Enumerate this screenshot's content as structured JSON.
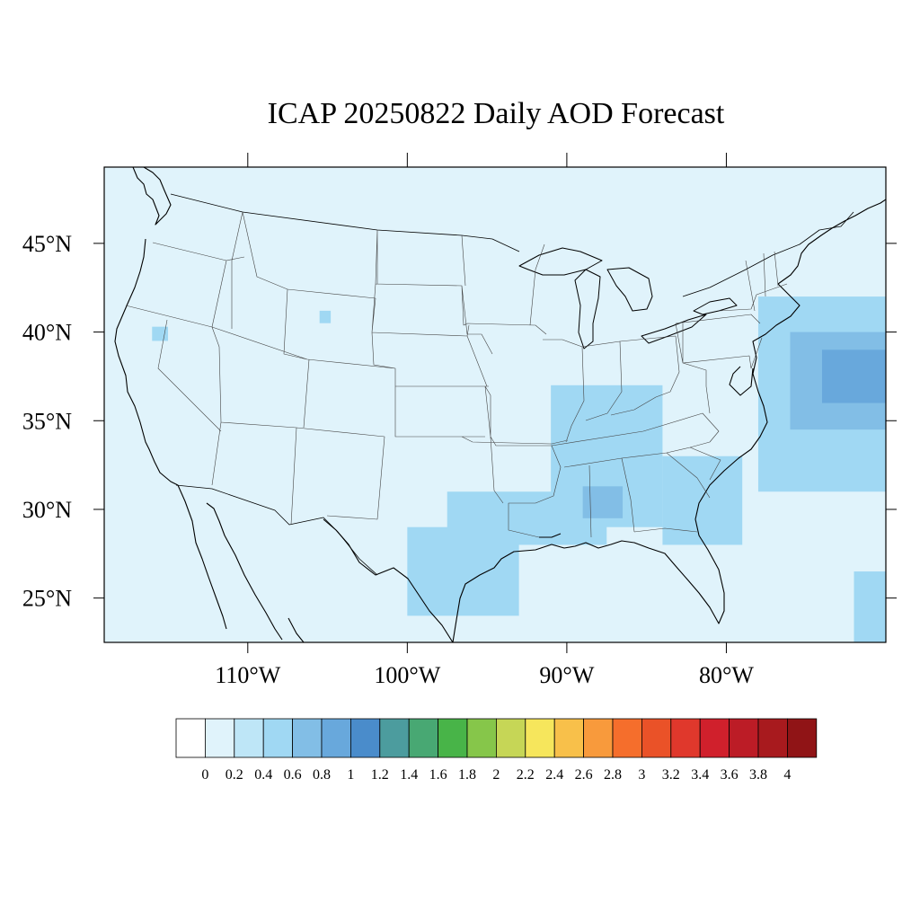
{
  "title": "ICAP 20250822 Daily AOD Forecast",
  "map": {
    "region": "Contiguous United States",
    "projection": "cylindrical equidistant",
    "lon_range": [
      -119,
      -70
    ],
    "lat_range": [
      22.5,
      49.3
    ],
    "lat_ticks": [
      {
        "value": 45,
        "label": "45°N"
      },
      {
        "value": 40,
        "label": "40°N"
      },
      {
        "value": 35,
        "label": "35°N"
      },
      {
        "value": 30,
        "label": "30°N"
      },
      {
        "value": 25,
        "label": "25°N"
      }
    ],
    "lon_ticks": [
      {
        "value": -110,
        "label": "110°W"
      },
      {
        "value": -100,
        "label": "100°W"
      },
      {
        "value": -90,
        "label": "90°W"
      },
      {
        "value": -80,
        "label": "80°W"
      }
    ],
    "background_color": "#e0f3fb",
    "boundary_color": "#000000"
  },
  "colorbar": {
    "labels": [
      "0",
      "0.2",
      "0.4",
      "0.6",
      "0.8",
      "1",
      "1.2",
      "1.4",
      "1.6",
      "1.8",
      "2",
      "2.2",
      "2.4",
      "2.6",
      "2.8",
      "3",
      "3.2",
      "3.4",
      "3.6",
      "3.8",
      "4"
    ],
    "colors": [
      "#ffffff",
      "#e0f3fb",
      "#bee6f7",
      "#a0d8f3",
      "#82bee6",
      "#68a8dc",
      "#4a8ccb",
      "#4c9c9e",
      "#48a873",
      "#48b448",
      "#86c64a",
      "#c6d656",
      "#f6e65c",
      "#f8c04a",
      "#f89a3c",
      "#f56e2c",
      "#ea5228",
      "#e0382c",
      "#d0202c",
      "#bc1c26",
      "#a81a1e",
      "#901416"
    ]
  },
  "chart_data": {
    "type": "heatmap",
    "title": "ICAP 20250822 Daily AOD Forecast",
    "variable": "AOD",
    "scale": [
      0,
      4
    ],
    "levels": [
      0,
      0.2,
      0.4,
      0.6,
      0.8,
      1,
      1.2,
      1.4,
      1.6,
      1.8,
      2,
      2.2,
      2.4,
      2.6,
      2.8,
      3,
      3.2,
      3.4,
      3.6,
      3.8,
      4
    ],
    "background_value_range": [
      0.2,
      0.4
    ],
    "elevated_regions": [
      {
        "lon_range": [
          -97.5,
          -87.5
        ],
        "lat_range": [
          28,
          31
        ],
        "aod_range": [
          0.4,
          0.6
        ]
      },
      {
        "lon_range": [
          -100,
          -93
        ],
        "lat_range": [
          24,
          29
        ],
        "aod_range": [
          0.4,
          0.6
        ]
      },
      {
        "lon_range": [
          -91,
          -84
        ],
        "lat_range": [
          29,
          37
        ],
        "aod_range": [
          0.4,
          0.6
        ]
      },
      {
        "lon_range": [
          -89,
          -86.5
        ],
        "lat_range": [
          29.5,
          31.3
        ],
        "aod_range": [
          0.6,
          0.8
        ]
      },
      {
        "lon_range": [
          -84,
          -79
        ],
        "lat_range": [
          28,
          33
        ],
        "aod_range": [
          0.4,
          0.6
        ]
      },
      {
        "lon_range": [
          -78,
          -70
        ],
        "lat_range": [
          31,
          42
        ],
        "aod_range": [
          0.4,
          0.6
        ]
      },
      {
        "lon_range": [
          -76,
          -70
        ],
        "lat_range": [
          34.5,
          40
        ],
        "aod_range": [
          0.6,
          0.8
        ]
      },
      {
        "lon_range": [
          -74,
          -70
        ],
        "lat_range": [
          36,
          39
        ],
        "aod_range": [
          0.8,
          1.0
        ]
      },
      {
        "lon_range": [
          -105.5,
          -104.8
        ],
        "lat_range": [
          40.5,
          41.2
        ],
        "aod_range": [
          0.4,
          0.6
        ]
      },
      {
        "lon_range": [
          -116,
          -115
        ],
        "lat_range": [
          39.5,
          40.3
        ],
        "aod_range": [
          0.4,
          0.6
        ]
      },
      {
        "lon_range": [
          -72,
          -70
        ],
        "lat_range": [
          22.5,
          26.5
        ],
        "aod_range": [
          0.4,
          0.6
        ]
      }
    ]
  }
}
